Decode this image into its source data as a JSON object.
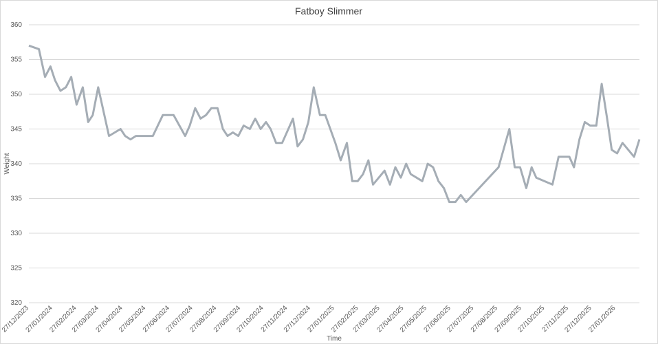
{
  "chart_data": {
    "type": "line",
    "title": "Fatboy Slimmer",
    "x_label": "Time",
    "y_label": "Weight",
    "x": [
      "27/12/2023",
      "09/01/2024",
      "17/01/2024",
      "24/01/2024",
      "30/01/2024",
      "06/02/2024",
      "13/02/2024",
      "20/02/2024",
      "27/02/2024",
      "06/03/2024",
      "13/03/2024",
      "19/03/2024",
      "26/03/2024",
      "09/04/2024",
      "24/04/2024",
      "30/04/2024",
      "07/05/2024",
      "14/05/2024",
      "05/06/2024",
      "18/06/2024",
      "02/07/2024",
      "17/07/2024",
      "23/07/2024",
      "30/07/2024",
      "06/08/2024",
      "13/08/2024",
      "20/08/2024",
      "28/08/2024",
      "04/09/2024",
      "10/09/2024",
      "17/09/2024",
      "24/09/2024",
      "01/10/2024",
      "09/10/2024",
      "16/10/2024",
      "23/10/2024",
      "30/10/2024",
      "05/11/2024",
      "12/11/2024",
      "20/11/2024",
      "04/12/2024",
      "10/12/2024",
      "17/12/2024",
      "24/12/2024",
      "31/12/2024",
      "08/01/2025",
      "15/01/2025",
      "28/01/2025",
      "04/02/2025",
      "12/02/2025",
      "19/02/2025",
      "26/02/2025",
      "05/03/2025",
      "12/03/2025",
      "18/03/2025",
      "02/04/2025",
      "09/04/2025",
      "16/04/2025",
      "23/04/2025",
      "30/04/2025",
      "06/05/2025",
      "21/05/2025",
      "28/05/2025",
      "04/06/2025",
      "11/06/2025",
      "18/06/2025",
      "25/06/2025",
      "03/07/2025",
      "10/07/2025",
      "17/07/2025",
      "28/08/2025",
      "11/09/2025",
      "18/09/2025",
      "25/09/2025",
      "03/10/2025",
      "10/10/2025",
      "16/10/2025",
      "06/11/2025",
      "14/11/2025",
      "28/11/2025",
      "04/12/2025",
      "11/12/2025",
      "18/12/2025",
      "25/12/2025",
      "02/01/2026",
      "09/01/2026",
      "16/01/2026",
      "22/01/2026",
      "29/01/2026",
      "05/02/2026",
      "20/02/2026",
      "27/02/2026"
    ],
    "series": [
      {
        "name": "Weight",
        "color": "#a5adb5",
        "values": [
          357,
          356.5,
          352.5,
          354,
          352,
          350.5,
          351,
          352.5,
          348.5,
          351,
          346,
          347,
          351,
          344,
          345,
          344,
          343.5,
          344,
          344,
          347,
          347,
          344,
          345.5,
          348,
          346.5,
          347,
          348,
          348,
          345,
          344,
          344.5,
          344,
          345.5,
          345,
          346.5,
          345,
          346,
          345,
          343,
          343,
          346.5,
          342.5,
          343.5,
          346,
          351,
          347,
          347,
          343,
          340.5,
          343,
          337.5,
          337.5,
          338.5,
          340.5,
          337,
          339,
          337,
          339.5,
          338,
          340,
          338.5,
          337.5,
          340,
          339.5,
          337.5,
          336.5,
          334.5,
          334.5,
          335.5,
          334.5,
          339.5,
          345,
          339.5,
          339.5,
          336.5,
          339.5,
          338,
          337,
          341,
          341,
          339.5,
          343.5,
          346,
          345.5,
          345.5,
          351.5,
          346.5,
          342,
          341.5,
          343,
          341,
          343.5
        ]
      }
    ],
    "xlim": [
      "27/12/2023",
      "27/02/2026"
    ],
    "xticks": [
      "27/12/2023",
      "27/01/2024",
      "27/02/2024",
      "27/03/2024",
      "27/04/2024",
      "27/05/2024",
      "27/06/2024",
      "27/07/2024",
      "27/08/2024",
      "27/09/2024",
      "27/10/2024",
      "27/11/2024",
      "27/12/2024",
      "27/01/2025",
      "27/02/2025",
      "27/03/2025",
      "27/04/2025",
      "27/05/2025",
      "27/06/2025",
      "27/07/2025",
      "27/08/2025",
      "27/09/2025",
      "27/10/2025",
      "27/11/2025",
      "27/12/2025",
      "27/01/2026"
    ],
    "ylim": [
      320,
      360
    ],
    "yticks": [
      320,
      325,
      330,
      335,
      340,
      345,
      350,
      355,
      360
    ],
    "grid": true
  }
}
